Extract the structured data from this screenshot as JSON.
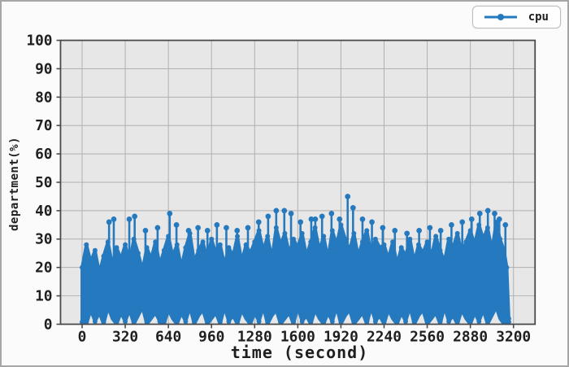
{
  "window": {
    "border_color": "#a6a6a6",
    "figure_background": "#fbfbfb"
  },
  "chart_data": {
    "type": "line",
    "title": "",
    "xlabel": "time (second)",
    "ylabel": "department(%)",
    "grid": true,
    "legend_position": "top-right-outside",
    "legend": {
      "label": "cpu"
    },
    "xlim": [
      -160,
      3360
    ],
    "ylim": [
      0,
      100
    ],
    "x_ticks": [
      0,
      320,
      640,
      960,
      1280,
      1600,
      1920,
      2240,
      2560,
      2880,
      3200
    ],
    "y_ticks": [
      0,
      10,
      20,
      30,
      40,
      50,
      60,
      70,
      80,
      90,
      100
    ],
    "colors": {
      "series": "#2579be",
      "plot_background": "#e7e7e7",
      "grid": "#b0b0b0",
      "spine": "#4a4a4a",
      "tick_text": "#1f1f1f"
    },
    "series": [
      {
        "name": "cpu",
        "color": "#2579be",
        "style": "dense-noisy-line-with-circle-markers",
        "description": "CPU usage oscillating rapidly between the lo and hi envelope, with spike peaks carrying markers; values in percent, time in seconds",
        "band": [
          [
            0,
            0,
            20
          ],
          [
            32,
            0,
            28
          ],
          [
            64,
            5,
            22
          ],
          [
            96,
            1,
            26
          ],
          [
            128,
            4,
            18
          ],
          [
            160,
            0,
            24
          ],
          [
            192,
            6,
            29
          ],
          [
            224,
            2,
            21
          ],
          [
            256,
            0,
            27
          ],
          [
            288,
            4,
            23
          ],
          [
            320,
            1,
            28
          ],
          [
            352,
            5,
            22
          ],
          [
            384,
            0,
            30
          ],
          [
            416,
            3,
            25
          ],
          [
            448,
            6,
            19
          ],
          [
            480,
            0,
            27
          ],
          [
            512,
            2,
            23
          ],
          [
            544,
            4,
            29
          ],
          [
            576,
            1,
            21
          ],
          [
            608,
            0,
            26
          ],
          [
            640,
            5,
            31
          ],
          [
            672,
            2,
            24
          ],
          [
            704,
            0,
            28
          ],
          [
            736,
            4,
            20
          ],
          [
            768,
            1,
            27
          ],
          [
            800,
            6,
            32
          ],
          [
            832,
            0,
            22
          ],
          [
            864,
            3,
            26
          ],
          [
            896,
            5,
            29
          ],
          [
            928,
            0,
            23
          ],
          [
            960,
            2,
            30
          ],
          [
            992,
            4,
            25
          ],
          [
            1024,
            0,
            28
          ],
          [
            1056,
            6,
            21
          ],
          [
            1088,
            1,
            27
          ],
          [
            1120,
            3,
            24
          ],
          [
            1152,
            0,
            31
          ],
          [
            1184,
            5,
            22
          ],
          [
            1216,
            2,
            28
          ],
          [
            1248,
            0,
            25
          ],
          [
            1280,
            4,
            29
          ],
          [
            1312,
            1,
            33
          ],
          [
            1344,
            6,
            26
          ],
          [
            1376,
            0,
            31
          ],
          [
            1408,
            3,
            23
          ],
          [
            1440,
            5,
            34
          ],
          [
            1472,
            0,
            28
          ],
          [
            1504,
            2,
            32
          ],
          [
            1536,
            4,
            25
          ],
          [
            1568,
            0,
            30
          ],
          [
            1600,
            6,
            27
          ],
          [
            1632,
            1,
            32
          ],
          [
            1664,
            3,
            24
          ],
          [
            1696,
            0,
            29
          ],
          [
            1728,
            5,
            34
          ],
          [
            1760,
            2,
            26
          ],
          [
            1792,
            0,
            31
          ],
          [
            1824,
            4,
            23
          ],
          [
            1856,
            1,
            33
          ],
          [
            1888,
            6,
            28
          ],
          [
            1920,
            0,
            35
          ],
          [
            1952,
            3,
            30
          ],
          [
            1984,
            5,
            26
          ],
          [
            2016,
            0,
            32
          ],
          [
            2048,
            2,
            24
          ],
          [
            2080,
            4,
            29
          ],
          [
            2112,
            0,
            33
          ],
          [
            2144,
            6,
            25
          ],
          [
            2176,
            1,
            30
          ],
          [
            2208,
            3,
            27
          ],
          [
            2240,
            0,
            28
          ],
          [
            2272,
            5,
            23
          ],
          [
            2304,
            2,
            29
          ],
          [
            2336,
            0,
            21
          ],
          [
            2368,
            4,
            27
          ],
          [
            2400,
            1,
            24
          ],
          [
            2432,
            6,
            30
          ],
          [
            2464,
            0,
            22
          ],
          [
            2496,
            3,
            28
          ],
          [
            2528,
            5,
            25
          ],
          [
            2560,
            0,
            29
          ],
          [
            2592,
            2,
            24
          ],
          [
            2624,
            4,
            31
          ],
          [
            2656,
            0,
            26
          ],
          [
            2688,
            6,
            22
          ],
          [
            2720,
            1,
            30
          ],
          [
            2752,
            3,
            27
          ],
          [
            2784,
            0,
            32
          ],
          [
            2816,
            5,
            25
          ],
          [
            2848,
            2,
            29
          ],
          [
            2880,
            0,
            33
          ],
          [
            2912,
            4,
            28
          ],
          [
            2944,
            1,
            35
          ],
          [
            2976,
            5,
            30
          ],
          [
            3008,
            0,
            34
          ],
          [
            3040,
            3,
            26
          ],
          [
            3072,
            6,
            36
          ],
          [
            3100,
            2,
            30
          ],
          [
            3130,
            0,
            26
          ],
          [
            3150,
            0,
            20
          ],
          [
            3165,
            0,
            2
          ]
        ],
        "peaks": [
          [
            200,
            36
          ],
          [
            235,
            37
          ],
          [
            350,
            37
          ],
          [
            390,
            38
          ],
          [
            470,
            33
          ],
          [
            560,
            34
          ],
          [
            650,
            39
          ],
          [
            700,
            35
          ],
          [
            790,
            33
          ],
          [
            860,
            34
          ],
          [
            930,
            33
          ],
          [
            1000,
            35
          ],
          [
            1070,
            34
          ],
          [
            1150,
            33
          ],
          [
            1230,
            34
          ],
          [
            1310,
            36
          ],
          [
            1380,
            38
          ],
          [
            1440,
            40
          ],
          [
            1500,
            40
          ],
          [
            1550,
            39
          ],
          [
            1620,
            36
          ],
          [
            1700,
            37
          ],
          [
            1730,
            37
          ],
          [
            1780,
            38
          ],
          [
            1850,
            39
          ],
          [
            1910,
            37
          ],
          [
            1970,
            45
          ],
          [
            2010,
            41
          ],
          [
            2080,
            37
          ],
          [
            2150,
            36
          ],
          [
            2230,
            34
          ],
          [
            2320,
            33
          ],
          [
            2410,
            32
          ],
          [
            2500,
            33
          ],
          [
            2580,
            34
          ],
          [
            2660,
            33
          ],
          [
            2740,
            35
          ],
          [
            2820,
            36
          ],
          [
            2890,
            37
          ],
          [
            2950,
            39
          ],
          [
            3010,
            40
          ],
          [
            3060,
            39
          ],
          [
            3095,
            37
          ],
          [
            3140,
            35
          ]
        ]
      }
    ]
  }
}
